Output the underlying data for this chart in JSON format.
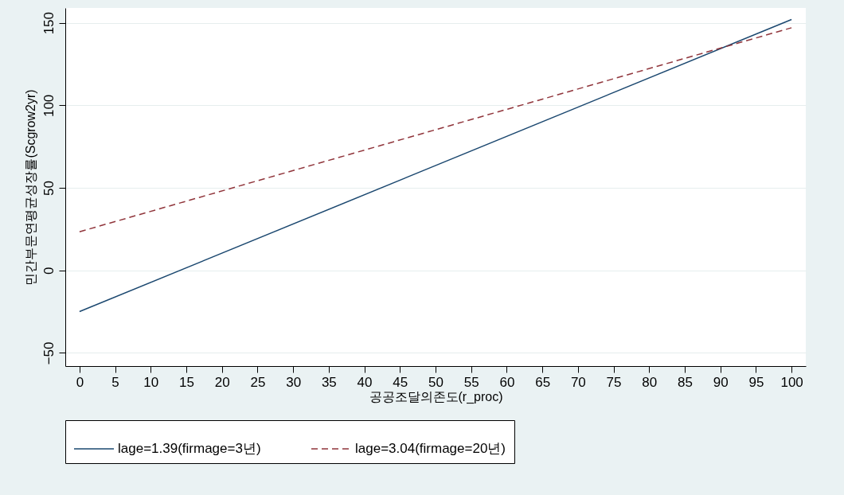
{
  "chart_data": {
    "type": "line",
    "xlabel": "공공조달의존도(r_proc)",
    "ylabel": "민간부문연평균성장률(Scgrow2yr)",
    "x": [
      0,
      100
    ],
    "series": [
      {
        "name": "lage=1.39(firmage=3년)",
        "color": "#1a476f",
        "values": [
          -25,
          152
        ],
        "line_style": "solid"
      },
      {
        "name": "lage=3.04(firmage=20년)",
        "color": "#90353b",
        "values": [
          23.4,
          147
        ],
        "line_style": "dashed"
      }
    ],
    "xlim": [
      -2,
      102
    ],
    "xticks": [
      0,
      5,
      10,
      15,
      20,
      25,
      30,
      35,
      40,
      45,
      50,
      55,
      60,
      65,
      70,
      75,
      80,
      85,
      90,
      95,
      100
    ],
    "ylim": [
      -58,
      159
    ],
    "yticks": [
      -50,
      0,
      50,
      100,
      150
    ],
    "grid": "y",
    "legend": "bottom",
    "marker": "none"
  }
}
